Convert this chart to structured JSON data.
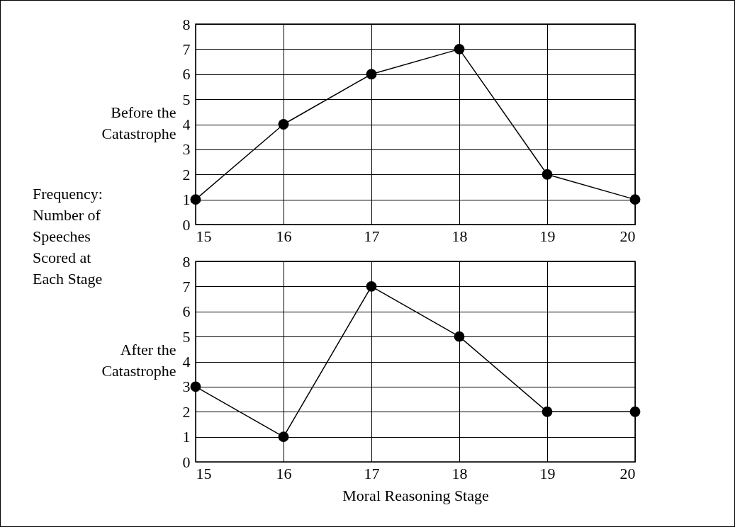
{
  "chart_data": [
    {
      "type": "line",
      "ylabel": "Before the Catastrophe",
      "annotations": [
        "Frequency: Number of Speeches Scored at Each Stage"
      ],
      "x": [
        15,
        16,
        17,
        18,
        19,
        20
      ],
      "values": [
        1,
        4,
        6,
        7,
        2,
        1
      ],
      "color": "#000000",
      "xlim": [
        15,
        20
      ],
      "xticks": [
        15,
        16,
        17,
        18,
        19,
        20
      ],
      "ylim": [
        0,
        8
      ],
      "yticks": [
        0,
        1,
        2,
        3,
        4,
        5,
        6,
        7,
        8
      ],
      "grid": true,
      "marker": "circle",
      "line_style": "solid"
    },
    {
      "type": "line",
      "ylabel": "After the Catastrophe",
      "xlabel": "Moral Reasoning Stage",
      "x": [
        15,
        16,
        17,
        18,
        19,
        20
      ],
      "values": [
        3,
        1,
        7,
        5,
        2,
        2
      ],
      "color": "#000000",
      "xlim": [
        15,
        20
      ],
      "xticks": [
        15,
        16,
        17,
        18,
        19,
        20
      ],
      "ylim": [
        0,
        8
      ],
      "yticks": [
        0,
        1,
        2,
        3,
        4,
        5,
        6,
        7,
        8
      ],
      "grid": true,
      "marker": "circle",
      "line_style": "solid"
    }
  ]
}
